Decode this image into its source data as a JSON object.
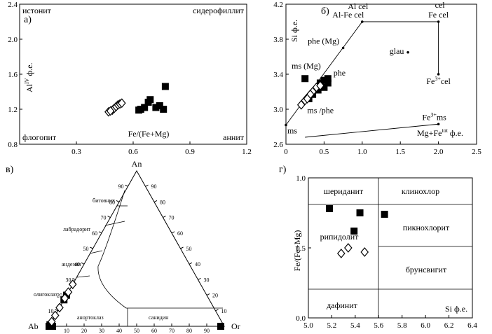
{
  "chart_data": [
    {
      "panel": "а)",
      "type": "scatter",
      "xlabel": "Fe/(Fe+Mg)",
      "ylabel": "Al",
      "ylabel_sup": "IV",
      "ylabel_unit": "ф.е.",
      "xlim": [
        0.0,
        1.2
      ],
      "ylim": [
        0.8,
        2.4
      ],
      "xticks": [
        "0.3",
        "0.6",
        "0.9",
        "1.2"
      ],
      "yticks": [
        "0.8",
        "1.2",
        "1.6",
        "2.0",
        "2.4"
      ],
      "corners": [
        "истонит",
        "сидерофиллит",
        "флогопит",
        "аннит"
      ],
      "series": [
        {
          "marker": "filled-square",
          "points": [
            [
              0.63,
              1.19
            ],
            [
              0.66,
              1.22
            ],
            [
              0.68,
              1.28
            ],
            [
              0.69,
              1.31
            ],
            [
              0.74,
              1.24
            ],
            [
              0.76,
              1.2
            ],
            [
              0.77,
              1.46
            ],
            [
              0.72,
              1.22
            ],
            [
              0.64,
              1.2
            ]
          ]
        },
        {
          "marker": "open-diamond",
          "points": [
            [
              0.47,
              1.17
            ],
            [
              0.49,
              1.19
            ],
            [
              0.5,
              1.21
            ],
            [
              0.51,
              1.23
            ],
            [
              0.52,
              1.25
            ],
            [
              0.53,
              1.26
            ],
            [
              0.54,
              1.27
            ],
            [
              0.48,
              1.18
            ]
          ]
        }
      ]
    },
    {
      "panel": "б)",
      "type": "scatter",
      "xlabel": "Mg+Fe",
      "xlabel_sup": "tot",
      "xlabel_unit": "ф.е.",
      "ylabel": "Si ф.е.",
      "xlim": [
        0,
        2.5
      ],
      "ylim": [
        2.6,
        4.2
      ],
      "xticks": [
        "0",
        "0.5",
        "1.0",
        "1.5",
        "2.0",
        "2.5"
      ],
      "yticks": [
        "2.6",
        "3.0",
        "3.4",
        "3.8",
        "4.2"
      ],
      "reference_points": [
        {
          "label": "Al cel",
          "x": 1.0,
          "y": 4.0
        },
        {
          "label": "Al-Fe cel",
          "x": 1.0,
          "y": 4.0
        },
        {
          "label": "cel",
          "x": 2.0,
          "y": 4.0
        },
        {
          "label": "Fe cel",
          "x": 2.0,
          "y": 4.0
        },
        {
          "label": "phe (Mg)",
          "x": 0.75,
          "y": 3.7
        },
        {
          "label": "phe",
          "x": 0.5,
          "y": 3.4
        },
        {
          "label": "ms (Mg)",
          "x": 0.45,
          "y": 3.4
        },
        {
          "label": "ms /phe",
          "x": 0.25,
          "y": 3.1
        },
        {
          "label": "glau",
          "x": 1.6,
          "y": 3.65
        },
        {
          "label": "Fe",
          "label_sup": "3+",
          "label_tail": "cel",
          "x": 2.0,
          "y": 3.4
        },
        {
          "label": "Fe",
          "label_sup": "3+",
          "label_tail": "ms",
          "x": 2.0,
          "y": 2.83
        },
        {
          "label": "ms",
          "x": 0.0,
          "y": 2.82
        }
      ],
      "series": [
        {
          "marker": "filled-square",
          "points": [
            [
              0.25,
              3.35
            ],
            [
              0.45,
              3.3
            ],
            [
              0.5,
              3.33
            ],
            [
              0.55,
              3.3
            ],
            [
              0.42,
              3.22
            ],
            [
              0.35,
              3.17
            ],
            [
              0.5,
              3.25
            ],
            [
              0.3,
              3.12
            ],
            [
              0.55,
              3.35
            ]
          ]
        },
        {
          "marker": "open-diamond",
          "points": [
            [
              0.2,
              3.05
            ],
            [
              0.25,
              3.1
            ],
            [
              0.3,
              3.15
            ],
            [
              0.35,
              3.2
            ],
            [
              0.4,
              3.25
            ],
            [
              0.45,
              3.27
            ],
            [
              0.32,
              3.17
            ],
            [
              0.28,
              3.12
            ]
          ]
        }
      ]
    },
    {
      "panel": "в)",
      "type": "ternary",
      "apices": [
        "An",
        "Ab",
        "Or"
      ],
      "ticks": [
        "10",
        "20",
        "30",
        "40",
        "50",
        "60",
        "70",
        "80",
        "90"
      ],
      "fields": [
        "битовнит",
        "лабрадорит",
        "андезин",
        "олигоклаз",
        "анортоклаз",
        "санидин"
      ],
      "series": [
        {
          "marker": "filled-square",
          "points_an_ab_or": [
            [
              0,
              100,
              0
            ],
            [
              0,
              2,
              98
            ],
            [
              0,
              98,
              2
            ],
            [
              1,
              99,
              0
            ],
            [
              17,
              83,
              0
            ],
            [
              20,
              80,
              0
            ]
          ]
        },
        {
          "marker": "open-diamond",
          "points_an_ab_or": [
            [
              7,
              93,
              0
            ],
            [
              12,
              88,
              0
            ],
            [
              18,
              82,
              0
            ],
            [
              22,
              78,
              0
            ],
            [
              27,
              73,
              0
            ],
            [
              3,
              97,
              0
            ]
          ]
        }
      ]
    },
    {
      "panel": "г)",
      "type": "scatter",
      "xlabel": "Si ф.е.",
      "ylabel": "Fe/(Fe+Mg)",
      "xlim": [
        5.0,
        6.4
      ],
      "ylim": [
        0.0,
        1.0
      ],
      "xticks": [
        "5.0",
        "5.2",
        "5.4",
        "5.6",
        "5.8",
        "6.0",
        "6.2",
        "6.4"
      ],
      "yticks": [
        "0.0",
        "0.5",
        "1.0"
      ],
      "fields": [
        "шериданит",
        "клинохлор",
        "рипидолит",
        "пикнохлорит",
        "брунсвигит",
        "дафинит"
      ],
      "series": [
        {
          "marker": "filled-square",
          "points": [
            [
              5.18,
              0.78
            ],
            [
              5.44,
              0.75
            ],
            [
              5.39,
              0.62
            ],
            [
              5.65,
              0.74
            ]
          ]
        },
        {
          "marker": "open-diamond",
          "points": [
            [
              5.28,
              0.46
            ],
            [
              5.34,
              0.5
            ],
            [
              5.48,
              0.47
            ]
          ]
        }
      ]
    }
  ]
}
